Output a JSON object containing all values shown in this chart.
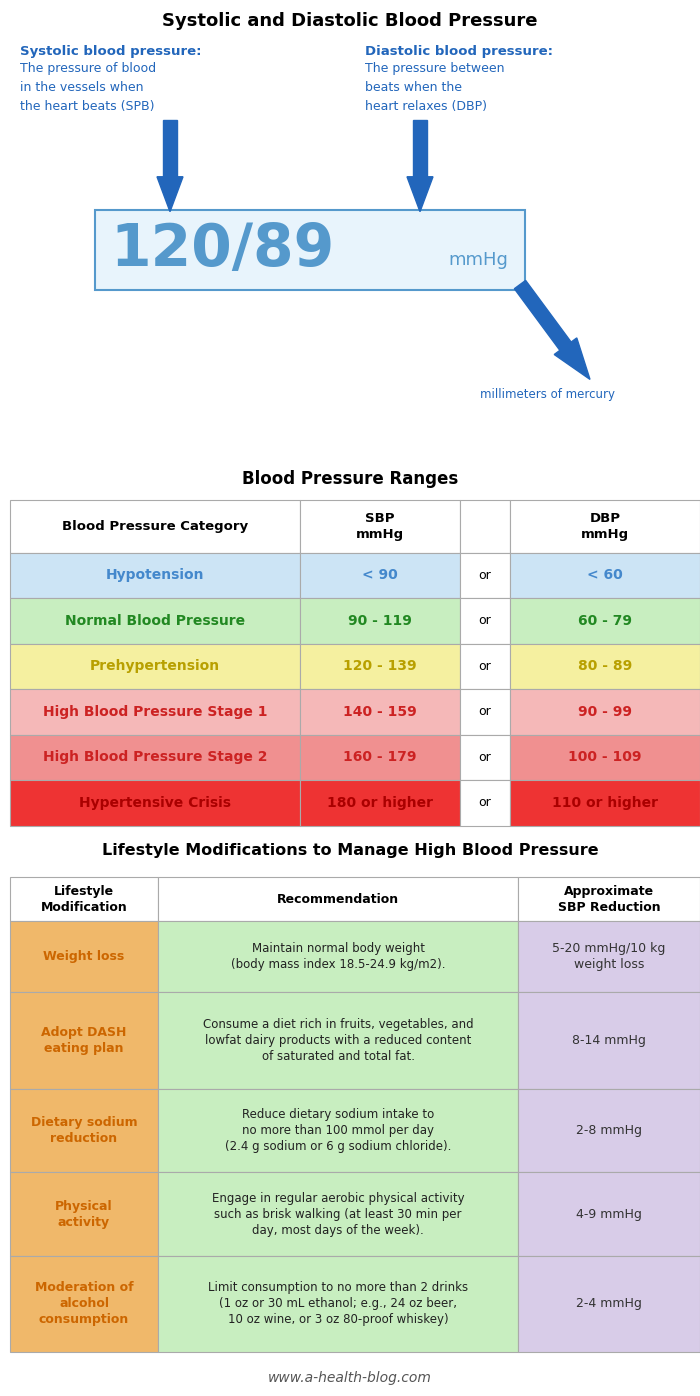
{
  "title1": "Systolic and Diastolic Blood Pressure",
  "section1_bg": "#ddeef8",
  "systolic_title": "Systolic blood pressure:",
  "systolic_body": "The pressure of blood\nin the vessels when\nthe heart beats (SPB)",
  "diastolic_title": "Diastolic blood pressure:",
  "diastolic_body": "The pressure between\nbeats when the\nheart relaxes (DBP)",
  "bp_value": "120/89",
  "bp_unit": "mmHg",
  "mmhg_label": "millimeters of mercury",
  "title2": "Blood Pressure Ranges",
  "bp_table_header": [
    "Blood Pressure Category",
    "SBP\nmmHg",
    "",
    "DBP\nmmHg"
  ],
  "bp_rows": [
    {
      "category": "Hypotension",
      "sbp": "< 90",
      "dbp": "< 60",
      "bg": "#cce4f5",
      "text_color": "#4488cc"
    },
    {
      "category": "Normal Blood Pressure",
      "sbp": "90 - 119",
      "dbp": "60 - 79",
      "bg": "#c8eec0",
      "text_color": "#228822"
    },
    {
      "category": "Prehypertension",
      "sbp": "120 - 139",
      "dbp": "80 - 89",
      "bg": "#f5f0a0",
      "text_color": "#b8a000"
    },
    {
      "category": "High Blood Pressure Stage 1",
      "sbp": "140 - 159",
      "dbp": "90 - 99",
      "bg": "#f5b8b8",
      "text_color": "#cc2222"
    },
    {
      "category": "High Blood Pressure Stage 2",
      "sbp": "160 - 179",
      "dbp": "100 - 109",
      "bg": "#f09090",
      "text_color": "#cc2222"
    },
    {
      "category": "Hypertensive Crisis",
      "sbp": "180 or higher",
      "dbp": "110 or higher",
      "bg": "#ee3333",
      "text_color": "#aa0000"
    }
  ],
  "title3": "Lifestyle Modifications to Manage High Blood Pressure",
  "lifestyle_header": [
    "Lifestyle\nModification",
    "Recommendation",
    "Approximate\nSBP Reduction"
  ],
  "lifestyle_rows": [
    {
      "modification": "Weight loss",
      "recommendation": "Maintain normal body weight\n(body mass index 18.5-24.9 kg/m2).",
      "reduction": "5-20 mmHg/10 kg\nweight loss"
    },
    {
      "modification": "Adopt DASH\neating plan",
      "recommendation": "Consume a diet rich in fruits, vegetables, and\nlowfat dairy products with a reduced content\nof saturated and total fat.",
      "reduction": "8-14 mmHg"
    },
    {
      "modification": "Dietary sodium\nreduction",
      "recommendation": "Reduce dietary sodium intake to\nno more than 100 mmol per day\n(2.4 g sodium or 6 g sodium chloride).",
      "reduction": "2-8 mmHg"
    },
    {
      "modification": "Physical\nactivity",
      "recommendation": "Engage in regular aerobic physical activity\nsuch as brisk walking (at least 30 min per\nday, most days of the week).",
      "reduction": "4-9 mmHg"
    },
    {
      "modification": "Moderation of\nalcohol\nconsumption",
      "recommendation": "Limit consumption to no more than 2 drinks\n(1 oz or 30 mL ethanol; e.g., 24 oz beer,\n10 oz wine, or 3 oz 80-proof whiskey)",
      "reduction": "2-4 mmHg"
    }
  ],
  "footer": "www.a-health-blog.com",
  "arrow_color": "#2266bb",
  "col1_bg": "#f0b86a",
  "col2_bg": "#c8eec0",
  "col3_bg": "#d8cce8"
}
